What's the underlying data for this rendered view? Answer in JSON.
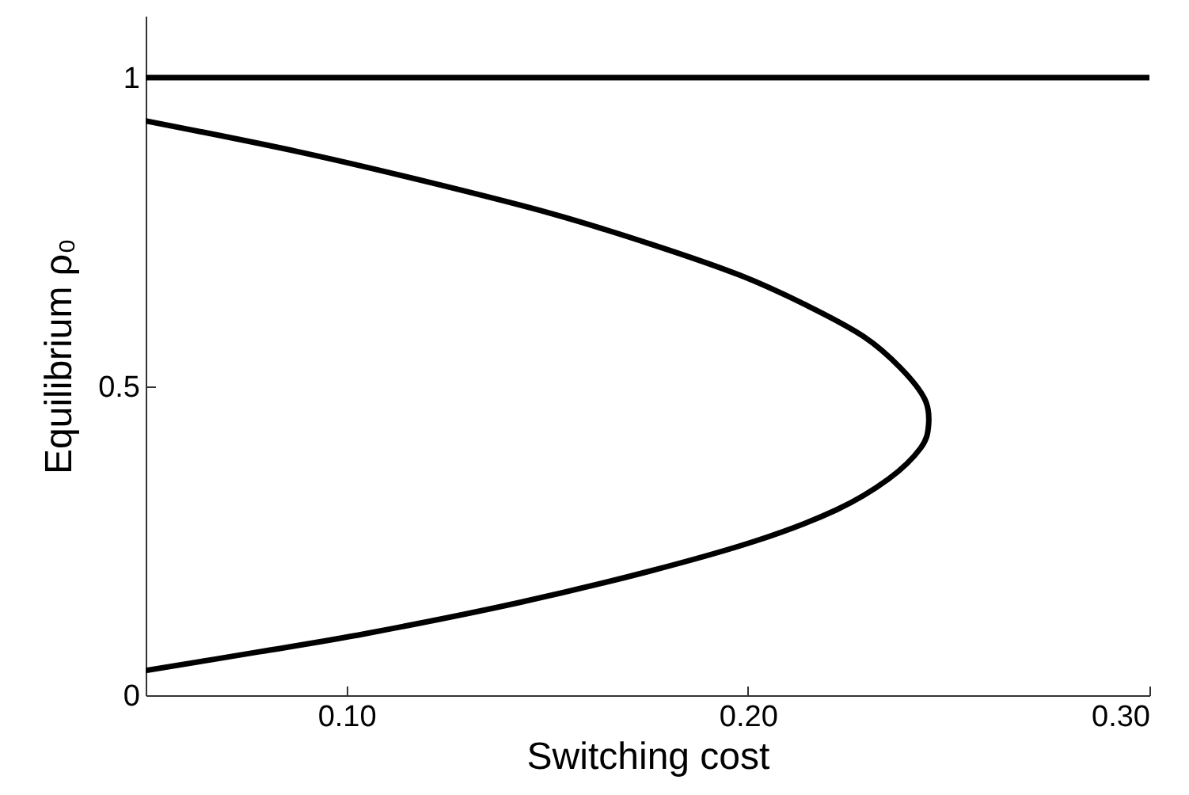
{
  "chart_data": {
    "type": "line",
    "xlabel": "Switching cost",
    "ylabel": "Equilibrium ρ₀",
    "xlim": [
      0.05,
      0.3
    ],
    "xticks": [
      {
        "value": 0.1,
        "label": "0.10"
      },
      {
        "value": 0.2,
        "label": "0.20"
      },
      {
        "value": 0.3,
        "label": "0.30"
      }
    ],
    "ylim": [
      0,
      1.1
    ],
    "yticks": [
      0,
      0.5,
      1
    ],
    "grid": false,
    "line_style": "solid",
    "series": [
      {
        "color": "#000000",
        "x": [
          0.05,
          0.3
        ],
        "values": [
          1,
          1
        ]
      },
      {
        "color": "#000000",
        "x": [
          0.05,
          0.088,
          0.121,
          0.151,
          0.176,
          0.198,
          0.215,
          0.229,
          0.238,
          0.244,
          0.245,
          0.243,
          0.235,
          0.222,
          0.202,
          0.175,
          0.143,
          0.105,
          0.078,
          0.05
        ],
        "values": [
          0.93,
          0.88,
          0.83,
          0.78,
          0.73,
          0.68,
          0.63,
          0.58,
          0.53,
          0.48,
          0.438,
          0.4,
          0.35,
          0.3,
          0.25,
          0.2,
          0.15,
          0.1,
          0.07,
          0.04
        ]
      }
    ]
  }
}
